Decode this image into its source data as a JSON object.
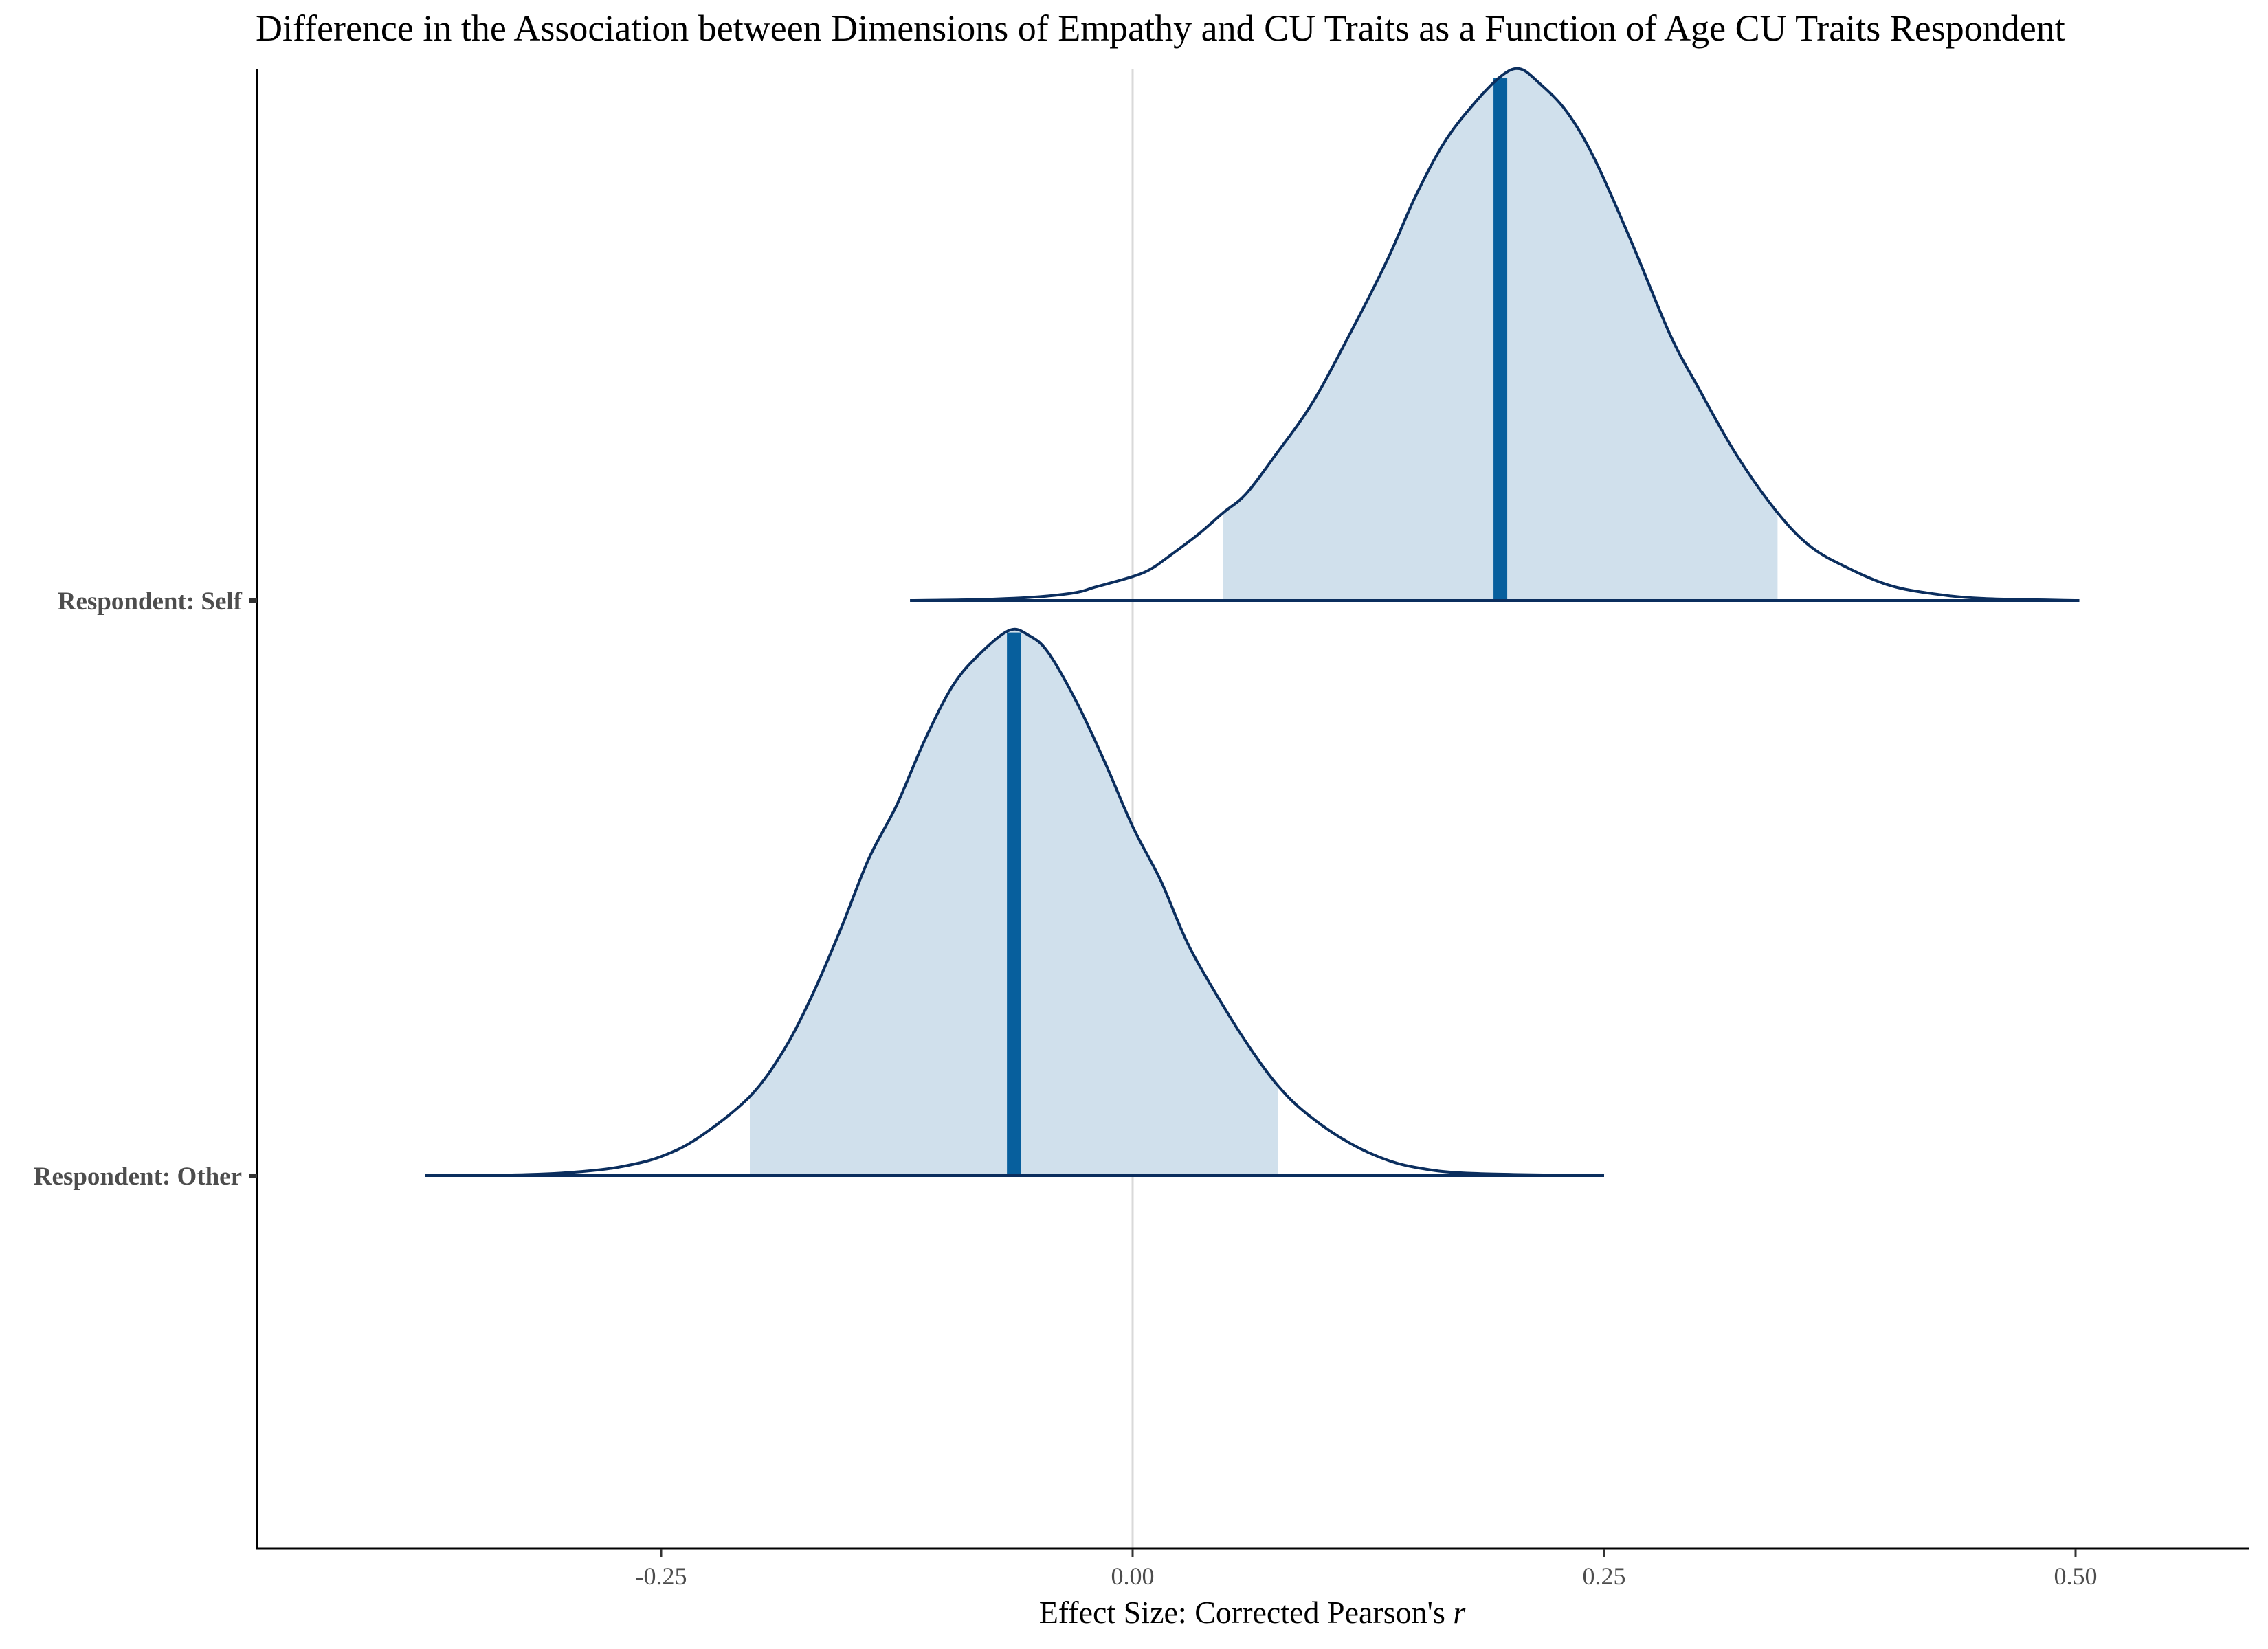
{
  "chart_data": {
    "type": "density",
    "title": "Difference in the Association between Dimensions of Empathy and CU Traits as a Function of Age CU Traits Respondent",
    "xlabel": "Effect Size: Corrected Pearson's",
    "xlabel_italic": "r",
    "ylabel": "",
    "xlim": [
      -0.465,
      0.595
    ],
    "x_ticks": [
      -0.25,
      0.0,
      0.25,
      0.5
    ],
    "x_tick_labels": [
      "-0.25",
      "0.00",
      "0.25",
      "0.50"
    ],
    "reference_line_x": 0.0,
    "grid": false,
    "categories": [
      "Respondent: Self",
      "Respondent: Other"
    ],
    "series": [
      {
        "name": "Respondent: Self",
        "median": 0.195,
        "ci": [
          0.048,
          0.342
        ],
        "range": [
          -0.118,
          0.502
        ],
        "density": [
          [
            -0.118,
            0.0
          ],
          [
            -0.08,
            0.002
          ],
          [
            -0.05,
            0.007
          ],
          [
            -0.03,
            0.015
          ],
          [
            -0.02,
            0.025
          ],
          [
            0.0,
            0.045
          ],
          [
            0.01,
            0.06
          ],
          [
            0.02,
            0.085
          ],
          [
            0.035,
            0.125
          ],
          [
            0.048,
            0.165
          ],
          [
            0.06,
            0.2
          ],
          [
            0.075,
            0.27
          ],
          [
            0.095,
            0.37
          ],
          [
            0.115,
            0.5
          ],
          [
            0.135,
            0.64
          ],
          [
            0.15,
            0.76
          ],
          [
            0.165,
            0.86
          ],
          [
            0.18,
            0.93
          ],
          [
            0.195,
            0.985
          ],
          [
            0.205,
            1.0
          ],
          [
            0.215,
            0.975
          ],
          [
            0.23,
            0.92
          ],
          [
            0.245,
            0.83
          ],
          [
            0.265,
            0.67
          ],
          [
            0.285,
            0.5
          ],
          [
            0.3,
            0.4
          ],
          [
            0.32,
            0.275
          ],
          [
            0.342,
            0.165
          ],
          [
            0.36,
            0.1
          ],
          [
            0.38,
            0.06
          ],
          [
            0.4,
            0.03
          ],
          [
            0.42,
            0.015
          ],
          [
            0.45,
            0.004
          ],
          [
            0.502,
            0.0
          ]
        ]
      },
      {
        "name": "Respondent: Other",
        "median": -0.063,
        "ci": [
          -0.203,
          0.077
        ],
        "range": [
          -0.375,
          0.25
        ],
        "density": [
          [
            -0.375,
            0.0
          ],
          [
            -0.32,
            0.002
          ],
          [
            -0.29,
            0.008
          ],
          [
            -0.27,
            0.017
          ],
          [
            -0.25,
            0.035
          ],
          [
            -0.23,
            0.07
          ],
          [
            -0.203,
            0.145
          ],
          [
            -0.185,
            0.23
          ],
          [
            -0.17,
            0.33
          ],
          [
            -0.155,
            0.45
          ],
          [
            -0.14,
            0.58
          ],
          [
            -0.125,
            0.68
          ],
          [
            -0.11,
            0.8
          ],
          [
            -0.095,
            0.9
          ],
          [
            -0.08,
            0.96
          ],
          [
            -0.065,
            1.0
          ],
          [
            -0.055,
            0.99
          ],
          [
            -0.045,
            0.96
          ],
          [
            -0.03,
            0.87
          ],
          [
            -0.015,
            0.76
          ],
          [
            0.0,
            0.64
          ],
          [
            0.015,
            0.54
          ],
          [
            0.03,
            0.42
          ],
          [
            0.05,
            0.3
          ],
          [
            0.065,
            0.22
          ],
          [
            0.077,
            0.165
          ],
          [
            0.09,
            0.12
          ],
          [
            0.11,
            0.07
          ],
          [
            0.13,
            0.035
          ],
          [
            0.15,
            0.015
          ],
          [
            0.18,
            0.004
          ],
          [
            0.25,
            0.0
          ]
        ]
      }
    ],
    "colors": {
      "fill": "#d0e0ec",
      "outline": "#0b2e5e",
      "median": "#075f9d",
      "reference_line": "#d9d9d9"
    }
  }
}
